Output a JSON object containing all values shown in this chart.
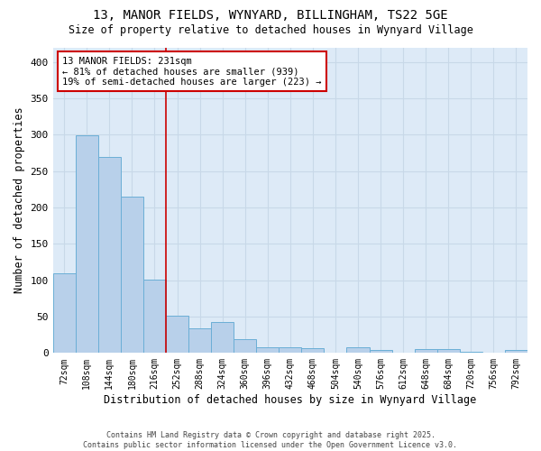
{
  "title_line1": "13, MANOR FIELDS, WYNYARD, BILLINGHAM, TS22 5GE",
  "title_line2": "Size of property relative to detached houses in Wynyard Village",
  "xlabel": "Distribution of detached houses by size in Wynyard Village",
  "ylabel": "Number of detached properties",
  "categories": [
    "72sqm",
    "108sqm",
    "144sqm",
    "180sqm",
    "216sqm",
    "252sqm",
    "288sqm",
    "324sqm",
    "360sqm",
    "396sqm",
    "432sqm",
    "468sqm",
    "504sqm",
    "540sqm",
    "576sqm",
    "612sqm",
    "648sqm",
    "684sqm",
    "720sqm",
    "756sqm",
    "792sqm"
  ],
  "values": [
    109,
    299,
    270,
    215,
    101,
    51,
    34,
    42,
    19,
    8,
    8,
    7,
    0,
    8,
    4,
    0,
    5,
    5,
    2,
    0,
    4
  ],
  "bar_color": "#b8d0ea",
  "bar_edge_color": "#6baed6",
  "vline_x": 4.5,
  "annotation_text": "13 MANOR FIELDS: 231sqm\n← 81% of detached houses are smaller (939)\n19% of semi-detached houses are larger (223) →",
  "annotation_box_color": "#ffffff",
  "annotation_border_color": "#cc0000",
  "ylim": [
    0,
    420
  ],
  "yticks": [
    0,
    50,
    100,
    150,
    200,
    250,
    300,
    350,
    400
  ],
  "grid_color": "#c8d8e8",
  "background_color": "#ddeaf7",
  "footer": "Contains HM Land Registry data © Crown copyright and database right 2025.\nContains public sector information licensed under the Open Government Licence v3.0."
}
